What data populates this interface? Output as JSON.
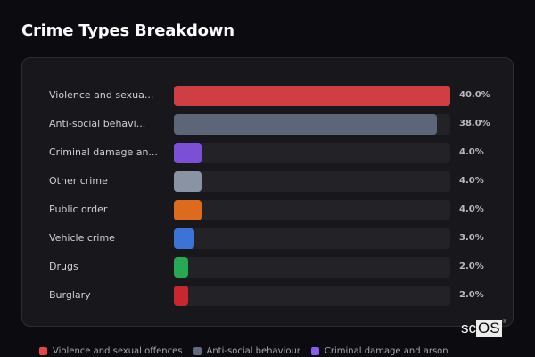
{
  "header": {
    "title": "Crime Types Breakdown"
  },
  "rows": [
    {
      "label": "Violence and sexua...",
      "pct_label": "40.0%",
      "value": 40.0,
      "color": "#cf3e43"
    },
    {
      "label": "Anti-social behavi...",
      "pct_label": "38.0%",
      "value": 38.0,
      "color": "#5c6678"
    },
    {
      "label": "Criminal damage an...",
      "pct_label": "4.0%",
      "value": 4.0,
      "color": "#7b4fd6"
    },
    {
      "label": "Other crime",
      "pct_label": "4.0%",
      "value": 4.0,
      "color": "#8a93a3"
    },
    {
      "label": "Public order",
      "pct_label": "4.0%",
      "value": 4.0,
      "color": "#dd6b1e"
    },
    {
      "label": "Vehicle crime",
      "pct_label": "3.0%",
      "value": 3.0,
      "color": "#3b73d6"
    },
    {
      "label": "Drugs",
      "pct_label": "2.0%",
      "value": 2.0,
      "color": "#27a852"
    },
    {
      "label": "Burglary",
      "pct_label": "2.0%",
      "value": 2.0,
      "color": "#c8282d"
    }
  ],
  "legend": [
    {
      "label": "Violence and sexual offences",
      "color": "#e8454a"
    },
    {
      "label": "Anti-social behaviour",
      "color": "#5f6a7d"
    },
    {
      "label": "Criminal damage and arson",
      "color": "#8a5cf0"
    }
  ],
  "logo": {
    "prefix": "sc",
    "highlight": "OS",
    "reg": "®"
  },
  "chart_data": {
    "type": "bar",
    "orientation": "horizontal",
    "title": "Crime Types Breakdown",
    "categories": [
      "Violence and sexual offences",
      "Anti-social behaviour",
      "Criminal damage and arson",
      "Other crime",
      "Public order",
      "Vehicle crime",
      "Drugs",
      "Burglary"
    ],
    "values": [
      40.0,
      38.0,
      4.0,
      4.0,
      4.0,
      3.0,
      2.0,
      2.0
    ],
    "value_labels": [
      "40.0%",
      "38.0%",
      "4.0%",
      "4.0%",
      "4.0%",
      "3.0%",
      "2.0%",
      "2.0%"
    ],
    "colors": [
      "#cf3e43",
      "#5c6678",
      "#7b4fd6",
      "#8a93a3",
      "#dd6b1e",
      "#3b73d6",
      "#27a852",
      "#c8282d"
    ],
    "xlabel": "",
    "ylabel": "",
    "xlim": [
      0,
      40
    ],
    "grid": false,
    "legend_position": "bottom",
    "legend_entries": [
      "Violence and sexual offences",
      "Anti-social behaviour",
      "Criminal damage and arson"
    ]
  }
}
